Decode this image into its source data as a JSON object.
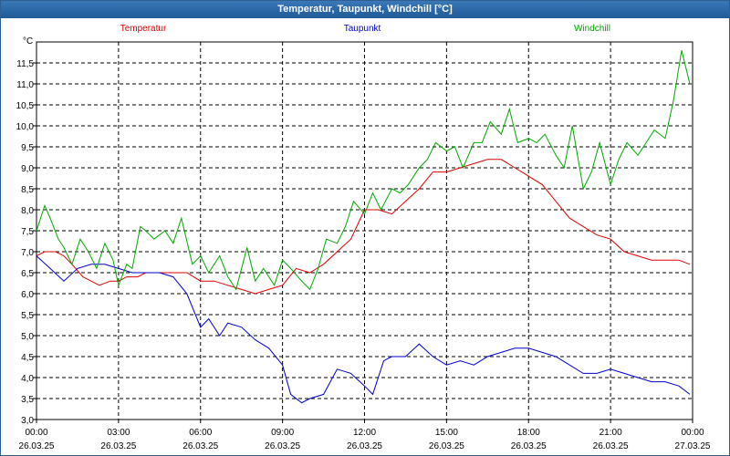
{
  "window": {
    "title": "Temperatur, Taupunkt, Windchill [°C]"
  },
  "chart_data": {
    "type": "line",
    "title": "Temperatur, Taupunkt, Windchill [°C]",
    "ylabel": "°C",
    "xlabel": "",
    "ylim": [
      3.0,
      12.0
    ],
    "xlim_hours": [
      0,
      24
    ],
    "grid": true,
    "y_ticks": [
      "3,0",
      "3,5",
      "4,0",
      "4,5",
      "5,0",
      "5,5",
      "6,0",
      "6,5",
      "7,0",
      "7,5",
      "8,0",
      "8,5",
      "9,0",
      "9,5",
      "10,0",
      "10,5",
      "11,0",
      "11,5"
    ],
    "x_ticks": [
      {
        "time": "00:00",
        "date": "26.03.25"
      },
      {
        "time": "03:00",
        "date": "26.03.25"
      },
      {
        "time": "06:00",
        "date": "26.03.25"
      },
      {
        "time": "09:00",
        "date": "26.03.25"
      },
      {
        "time": "12:00",
        "date": "26.03.25"
      },
      {
        "time": "15:00",
        "date": "26.03.25"
      },
      {
        "time": "18:00",
        "date": "26.03.25"
      },
      {
        "time": "21:00",
        "date": "26.03.25"
      },
      {
        "time": "00:00",
        "date": "27.03.25"
      }
    ],
    "series": [
      {
        "name": "Temperatur",
        "color": "#e00000",
        "x": [
          0,
          0.3,
          0.7,
          1,
          1.3,
          1.7,
          2,
          2.3,
          2.7,
          3,
          3.3,
          3.7,
          4,
          4.5,
          5,
          5.5,
          6,
          6.5,
          7,
          7.5,
          8,
          8.5,
          9,
          9.5,
          10,
          10.5,
          11,
          11.5,
          12,
          12.5,
          13,
          13.5,
          14,
          14.5,
          15,
          15.5,
          16,
          16.5,
          17,
          17.5,
          18,
          18.5,
          19,
          19.5,
          20,
          20.5,
          21,
          21.5,
          22,
          22.5,
          23,
          23.5,
          23.9
        ],
        "y": [
          6.9,
          7.0,
          7.0,
          6.9,
          6.7,
          6.4,
          6.3,
          6.2,
          6.3,
          6.3,
          6.4,
          6.4,
          6.5,
          6.5,
          6.5,
          6.5,
          6.3,
          6.3,
          6.2,
          6.1,
          6.0,
          6.1,
          6.2,
          6.6,
          6.5,
          6.7,
          7.0,
          7.3,
          8.0,
          8.0,
          7.9,
          8.2,
          8.5,
          8.9,
          8.9,
          9.0,
          9.1,
          9.2,
          9.2,
          9.0,
          8.8,
          8.6,
          8.2,
          7.8,
          7.6,
          7.4,
          7.3,
          7.0,
          6.9,
          6.8,
          6.8,
          6.8,
          6.7
        ]
      },
      {
        "name": "Taupunkt",
        "color": "#0000cc",
        "x": [
          0,
          0.5,
          1,
          1.5,
          2,
          2.5,
          3,
          3.5,
          4,
          4.5,
          5,
          5.5,
          6,
          6.3,
          6.7,
          7,
          7.5,
          8,
          8.5,
          9,
          9.3,
          9.7,
          10,
          10.5,
          11,
          11.5,
          12,
          12.3,
          12.7,
          13,
          13.5,
          14,
          14.5,
          15,
          15.5,
          16,
          16.5,
          17,
          17.5,
          18,
          18.5,
          19,
          19.5,
          20,
          20.5,
          21,
          21.5,
          22,
          22.5,
          23,
          23.5,
          23.9
        ],
        "y": [
          6.9,
          6.6,
          6.3,
          6.6,
          6.7,
          6.7,
          6.6,
          6.5,
          6.5,
          6.5,
          6.4,
          6.0,
          5.2,
          5.4,
          5.0,
          5.3,
          5.2,
          4.9,
          4.7,
          4.3,
          3.6,
          3.4,
          3.5,
          3.6,
          4.2,
          4.1,
          3.8,
          3.6,
          4.4,
          4.5,
          4.5,
          4.8,
          4.5,
          4.3,
          4.4,
          4.3,
          4.5,
          4.6,
          4.7,
          4.7,
          4.6,
          4.5,
          4.3,
          4.1,
          4.1,
          4.2,
          4.1,
          4.0,
          3.9,
          3.9,
          3.8,
          3.6
        ]
      },
      {
        "name": "Windchill",
        "color": "#00aa00",
        "x": [
          0,
          0.3,
          0.5,
          0.8,
          1,
          1.3,
          1.6,
          1.9,
          2.2,
          2.5,
          2.8,
          3,
          3.3,
          3.5,
          3.8,
          4,
          4.3,
          4.7,
          5,
          5.3,
          5.7,
          6,
          6.3,
          6.7,
          7,
          7.3,
          7.7,
          8,
          8.3,
          8.7,
          9,
          9.3,
          9.7,
          10,
          10.3,
          10.6,
          11,
          11.3,
          11.6,
          12,
          12.3,
          12.6,
          13,
          13.3,
          13.6,
          14,
          14.3,
          14.6,
          15,
          15.3,
          15.6,
          16,
          16.3,
          16.6,
          17,
          17.3,
          17.6,
          18,
          18.3,
          18.6,
          19,
          19.3,
          19.6,
          20,
          20.3,
          20.6,
          21,
          21.3,
          21.6,
          22,
          22.3,
          22.6,
          23,
          23.3,
          23.6,
          23.9
        ],
        "y": [
          7.5,
          8.1,
          7.8,
          7.3,
          7.1,
          6.7,
          7.3,
          7.0,
          6.6,
          7.2,
          6.8,
          6.2,
          6.7,
          6.6,
          7.6,
          7.5,
          7.3,
          7.5,
          7.2,
          7.8,
          6.7,
          6.9,
          6.5,
          6.9,
          6.4,
          6.1,
          7.1,
          6.3,
          6.6,
          6.2,
          6.8,
          6.6,
          6.3,
          6.1,
          6.6,
          7.3,
          7.2,
          7.6,
          8.2,
          7.9,
          8.4,
          8.0,
          8.5,
          8.4,
          8.6,
          9.0,
          9.2,
          9.6,
          9.4,
          9.5,
          9.0,
          9.6,
          9.6,
          10.1,
          9.8,
          10.4,
          9.6,
          9.7,
          9.6,
          9.8,
          9.3,
          9.0,
          10.0,
          8.5,
          8.9,
          9.6,
          8.6,
          9.2,
          9.6,
          9.3,
          9.6,
          9.9,
          9.7,
          10.6,
          11.8,
          11.0
        ]
      }
    ]
  }
}
